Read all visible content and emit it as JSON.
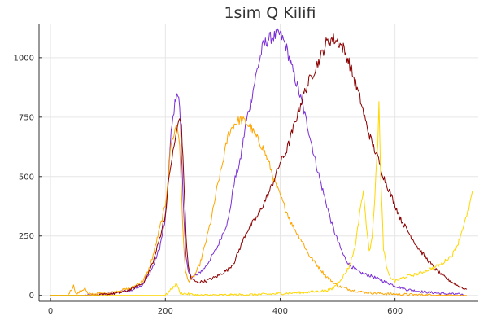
{
  "chart_data": {
    "type": "line",
    "title": "1sim Q Kilifi",
    "xlabel": "",
    "ylabel": "",
    "xlim": [
      -20,
      745
    ],
    "ylim": [
      -25,
      1140
    ],
    "x_ticks": [
      0,
      200,
      400,
      600
    ],
    "y_ticks": [
      0,
      250,
      500,
      750,
      1000
    ],
    "x_tick_labels": [
      "0",
      "200",
      "400",
      "600"
    ],
    "y_tick_labels": [
      "0",
      "250",
      "500",
      "750",
      "1000"
    ],
    "grid": true,
    "legend": "none",
    "series": [
      {
        "color": "#7b2fd6",
        "points": [
          [
            0,
            0
          ],
          [
            60,
            0
          ],
          [
            100,
            5
          ],
          [
            120,
            15
          ],
          [
            140,
            20
          ],
          [
            160,
            45
          ],
          [
            170,
            80
          ],
          [
            180,
            130
          ],
          [
            190,
            200
          ],
          [
            200,
            320
          ],
          [
            205,
            500
          ],
          [
            210,
            680
          ],
          [
            215,
            780
          ],
          [
            220,
            860
          ],
          [
            225,
            800
          ],
          [
            228,
            600
          ],
          [
            232,
            350
          ],
          [
            236,
            160
          ],
          [
            240,
            95
          ],
          [
            246,
            80
          ],
          [
            255,
            85
          ],
          [
            270,
            120
          ],
          [
            290,
            200
          ],
          [
            310,
            320
          ],
          [
            320,
            480
          ],
          [
            330,
            560
          ],
          [
            340,
            720
          ],
          [
            350,
            830
          ],
          [
            360,
            950
          ],
          [
            370,
            1050
          ],
          [
            380,
            1080
          ],
          [
            390,
            1090
          ],
          [
            400,
            1100
          ],
          [
            410,
            1050
          ],
          [
            420,
            960
          ],
          [
            430,
            880
          ],
          [
            440,
            790
          ],
          [
            450,
            690
          ],
          [
            460,
            580
          ],
          [
            470,
            480
          ],
          [
            480,
            390
          ],
          [
            490,
            300
          ],
          [
            500,
            230
          ],
          [
            510,
            170
          ],
          [
            520,
            130
          ],
          [
            530,
            110
          ],
          [
            540,
            95
          ],
          [
            560,
            80
          ],
          [
            580,
            60
          ],
          [
            600,
            40
          ],
          [
            620,
            25
          ],
          [
            650,
            15
          ],
          [
            680,
            8
          ],
          [
            720,
            3
          ]
        ]
      },
      {
        "color": "#ffa500",
        "points": [
          [
            0,
            0
          ],
          [
            30,
            0
          ],
          [
            40,
            40
          ],
          [
            45,
            5
          ],
          [
            60,
            30
          ],
          [
            65,
            5
          ],
          [
            100,
            10
          ],
          [
            120,
            20
          ],
          [
            140,
            30
          ],
          [
            160,
            60
          ],
          [
            170,
            100
          ],
          [
            180,
            180
          ],
          [
            190,
            280
          ],
          [
            200,
            380
          ],
          [
            205,
            500
          ],
          [
            210,
            640
          ],
          [
            215,
            680
          ],
          [
            220,
            720
          ],
          [
            225,
            640
          ],
          [
            230,
            300
          ],
          [
            235,
            100
          ],
          [
            240,
            60
          ],
          [
            250,
            80
          ],
          [
            260,
            130
          ],
          [
            270,
            220
          ],
          [
            280,
            320
          ],
          [
            290,
            450
          ],
          [
            300,
            560
          ],
          [
            310,
            680
          ],
          [
            320,
            720
          ],
          [
            330,
            740
          ],
          [
            340,
            730
          ],
          [
            350,
            700
          ],
          [
            360,
            660
          ],
          [
            370,
            620
          ],
          [
            380,
            560
          ],
          [
            390,
            480
          ],
          [
            400,
            420
          ],
          [
            410,
            360
          ],
          [
            420,
            300
          ],
          [
            430,
            260
          ],
          [
            440,
            220
          ],
          [
            450,
            170
          ],
          [
            460,
            140
          ],
          [
            470,
            110
          ],
          [
            480,
            80
          ],
          [
            490,
            60
          ],
          [
            500,
            40
          ],
          [
            520,
            25
          ],
          [
            540,
            15
          ],
          [
            560,
            10
          ],
          [
            600,
            5
          ],
          [
            650,
            2
          ],
          [
            700,
            0
          ],
          [
            725,
            0
          ]
        ]
      },
      {
        "color": "#8b0000",
        "points": [
          [
            0,
            0
          ],
          [
            80,
            0
          ],
          [
            120,
            10
          ],
          [
            140,
            25
          ],
          [
            160,
            50
          ],
          [
            170,
            90
          ],
          [
            180,
            150
          ],
          [
            190,
            240
          ],
          [
            200,
            340
          ],
          [
            205,
            460
          ],
          [
            210,
            560
          ],
          [
            215,
            620
          ],
          [
            220,
            700
          ],
          [
            225,
            740
          ],
          [
            228,
            720
          ],
          [
            232,
            500
          ],
          [
            236,
            250
          ],
          [
            240,
            120
          ],
          [
            245,
            70
          ],
          [
            255,
            55
          ],
          [
            270,
            60
          ],
          [
            290,
            80
          ],
          [
            310,
            110
          ],
          [
            320,
            140
          ],
          [
            330,
            200
          ],
          [
            340,
            260
          ],
          [
            350,
            300
          ],
          [
            360,
            330
          ],
          [
            370,
            380
          ],
          [
            380,
            430
          ],
          [
            390,
            490
          ],
          [
            400,
            560
          ],
          [
            410,
            600
          ],
          [
            420,
            680
          ],
          [
            430,
            760
          ],
          [
            440,
            840
          ],
          [
            450,
            900
          ],
          [
            460,
            950
          ],
          [
            470,
            1000
          ],
          [
            480,
            1060
          ],
          [
            490,
            1080
          ],
          [
            500,
            1070
          ],
          [
            510,
            1040
          ],
          [
            520,
            980
          ],
          [
            530,
            900
          ],
          [
            540,
            820
          ],
          [
            550,
            720
          ],
          [
            560,
            640
          ],
          [
            570,
            580
          ],
          [
            580,
            500
          ],
          [
            590,
            440
          ],
          [
            600,
            380
          ],
          [
            610,
            320
          ],
          [
            620,
            280
          ],
          [
            630,
            240
          ],
          [
            640,
            200
          ],
          [
            650,
            170
          ],
          [
            660,
            140
          ],
          [
            670,
            110
          ],
          [
            680,
            90
          ],
          [
            690,
            70
          ],
          [
            700,
            55
          ],
          [
            710,
            40
          ],
          [
            720,
            30
          ],
          [
            725,
            25
          ]
        ]
      },
      {
        "color": "#ffd700",
        "points": [
          [
            0,
            0
          ],
          [
            200,
            0
          ],
          [
            220,
            50
          ],
          [
            225,
            10
          ],
          [
            260,
            0
          ],
          [
            380,
            5
          ],
          [
            420,
            10
          ],
          [
            460,
            15
          ],
          [
            490,
            25
          ],
          [
            510,
            80
          ],
          [
            520,
            120
          ],
          [
            530,
            200
          ],
          [
            535,
            280
          ],
          [
            540,
            380
          ],
          [
            545,
            430
          ],
          [
            550,
            300
          ],
          [
            555,
            180
          ],
          [
            560,
            250
          ],
          [
            565,
            420
          ],
          [
            570,
            650
          ],
          [
            572,
            830
          ],
          [
            575,
            500
          ],
          [
            580,
            200
          ],
          [
            585,
            120
          ],
          [
            590,
            80
          ],
          [
            600,
            60
          ],
          [
            620,
            80
          ],
          [
            640,
            90
          ],
          [
            660,
            110
          ],
          [
            680,
            130
          ],
          [
            700,
            170
          ],
          [
            710,
            220
          ],
          [
            720,
            300
          ],
          [
            725,
            330
          ],
          [
            730,
            380
          ],
          [
            735,
            440
          ]
        ]
      }
    ]
  }
}
